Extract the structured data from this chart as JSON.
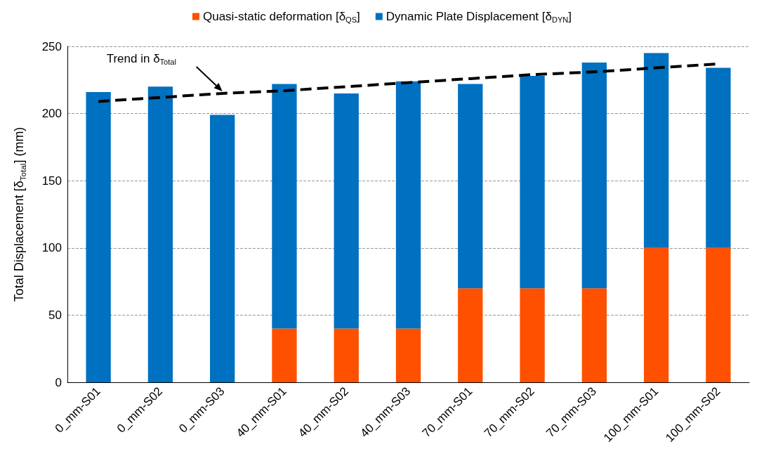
{
  "chart_data": {
    "type": "bar",
    "stacked": true,
    "categories": [
      "0_mm-S01",
      "0_mm-S02",
      "0_mm-S03",
      "40_mm-S01",
      "40_mm-S02",
      "40_mm-S03",
      "70_mm-S01",
      "70_mm-S02",
      "70_mm-S03",
      "100_mm-S01",
      "100_mm-S02"
    ],
    "series": [
      {
        "name": "Quasi-static deformation [δ$_{QS}$]",
        "color": "#ff5000",
        "values": [
          0,
          0,
          0,
          40,
          40,
          40,
          70,
          70,
          70,
          100,
          100
        ]
      },
      {
        "name": "Dynamic Plate Displacement [δ$_{DYN}$]",
        "color": "#0070c0",
        "values": [
          216,
          220,
          199,
          182,
          175,
          184,
          152,
          158,
          168,
          145,
          134
        ]
      },
      {
        "type": "line",
        "color": "#000000",
        "line_style": "dashed",
        "marker": "none",
        "values": [
          209,
          212,
          215,
          217,
          220,
          223,
          226,
          229,
          231,
          234,
          237
        ]
      }
    ],
    "ylabel": "Total Displacement [δ$_{Total}$] (mm)",
    "ylim": [
      0,
      250
    ],
    "yticks": [
      0,
      50,
      100,
      150,
      200,
      250
    ],
    "grid": "y",
    "legend": "top",
    "annotations": [
      "Trend in δ$_{Total}$"
    ]
  }
}
